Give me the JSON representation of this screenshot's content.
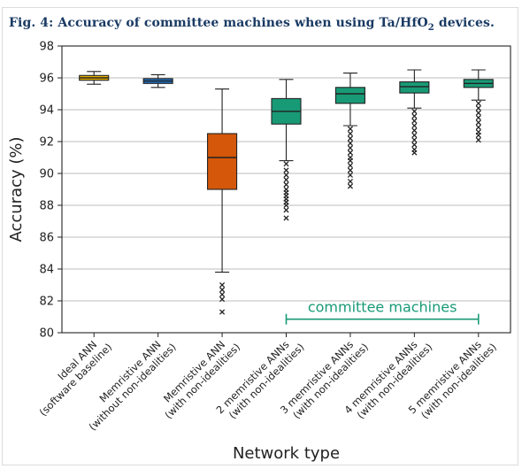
{
  "caption": {
    "prefix": "Fig. 4:",
    "text_before_sub": "Accuracy of committee machines when using Ta/HfO",
    "sub": "2",
    "text_after_sub": " devices."
  },
  "chart_data": {
    "type": "box",
    "xlabel": "Network type",
    "ylabel": "Accuracy (%)",
    "ylim": [
      80,
      98
    ],
    "yticks": [
      80,
      82,
      84,
      86,
      88,
      90,
      92,
      94,
      96,
      98
    ],
    "grid": "horizontal",
    "categories": [
      [
        "Ideal ANN",
        "(software baseline)"
      ],
      [
        "Memristive ANN",
        "(without non-idealities)"
      ],
      [
        "Memristive ANN",
        "(with non-idealities)"
      ],
      [
        "2 memristive ANNs",
        "(with non-idealities)"
      ],
      [
        "3 memristive ANNs",
        "(with non-idealities)"
      ],
      [
        "4 memristive ANNs",
        "(with non-idealities)"
      ],
      [
        "5 memristive ANNs",
        "(with non-idealities)"
      ]
    ],
    "boxes": [
      {
        "color": "#e8b200",
        "whisker_low": 95.6,
        "q1": 95.85,
        "median": 96.0,
        "q3": 96.15,
        "whisker_high": 96.4,
        "outliers": []
      },
      {
        "color": "#1f6fbf",
        "whisker_low": 95.4,
        "q1": 95.65,
        "median": 95.8,
        "q3": 95.95,
        "whisker_high": 96.2,
        "outliers": []
      },
      {
        "color": "#d4570a",
        "whisker_low": 83.8,
        "q1": 89.0,
        "median": 91.0,
        "q3": 92.5,
        "whisker_high": 95.3,
        "outliers": [
          83.0,
          82.7,
          82.4,
          82.1,
          81.3
        ]
      },
      {
        "color": "#189a76",
        "whisker_low": 90.8,
        "q1": 93.1,
        "median": 93.9,
        "q3": 94.7,
        "whisker_high": 95.9,
        "outliers": [
          90.6,
          90.2,
          89.9,
          89.6,
          89.3,
          89.0,
          88.8,
          88.6,
          88.4,
          88.2,
          88.0,
          87.7,
          87.2
        ]
      },
      {
        "color": "#189a76",
        "whisker_low": 93.0,
        "q1": 94.4,
        "median": 95.0,
        "q3": 95.4,
        "whisker_high": 96.3,
        "outliers": [
          92.8,
          92.5,
          92.2,
          91.9,
          91.6,
          91.3,
          91.0,
          90.8,
          90.5,
          90.2,
          89.9,
          89.5,
          89.2
        ]
      },
      {
        "color": "#189a76",
        "whisker_low": 94.1,
        "q1": 95.05,
        "median": 95.45,
        "q3": 95.75,
        "whisker_high": 96.5,
        "outliers": [
          93.9,
          93.6,
          93.3,
          93.0,
          92.7,
          92.4,
          92.1,
          91.8,
          91.5,
          91.3
        ]
      },
      {
        "color": "#189a76",
        "whisker_low": 94.6,
        "q1": 95.4,
        "median": 95.65,
        "q3": 95.9,
        "whisker_high": 96.5,
        "outliers": [
          94.4,
          94.1,
          93.8,
          93.5,
          93.2,
          92.9,
          92.6,
          92.4,
          92.1
        ]
      }
    ],
    "annotation": {
      "text": "committee machines",
      "from_category": 4,
      "to_category": 7,
      "y": 80.85,
      "color": "#189a76"
    }
  }
}
